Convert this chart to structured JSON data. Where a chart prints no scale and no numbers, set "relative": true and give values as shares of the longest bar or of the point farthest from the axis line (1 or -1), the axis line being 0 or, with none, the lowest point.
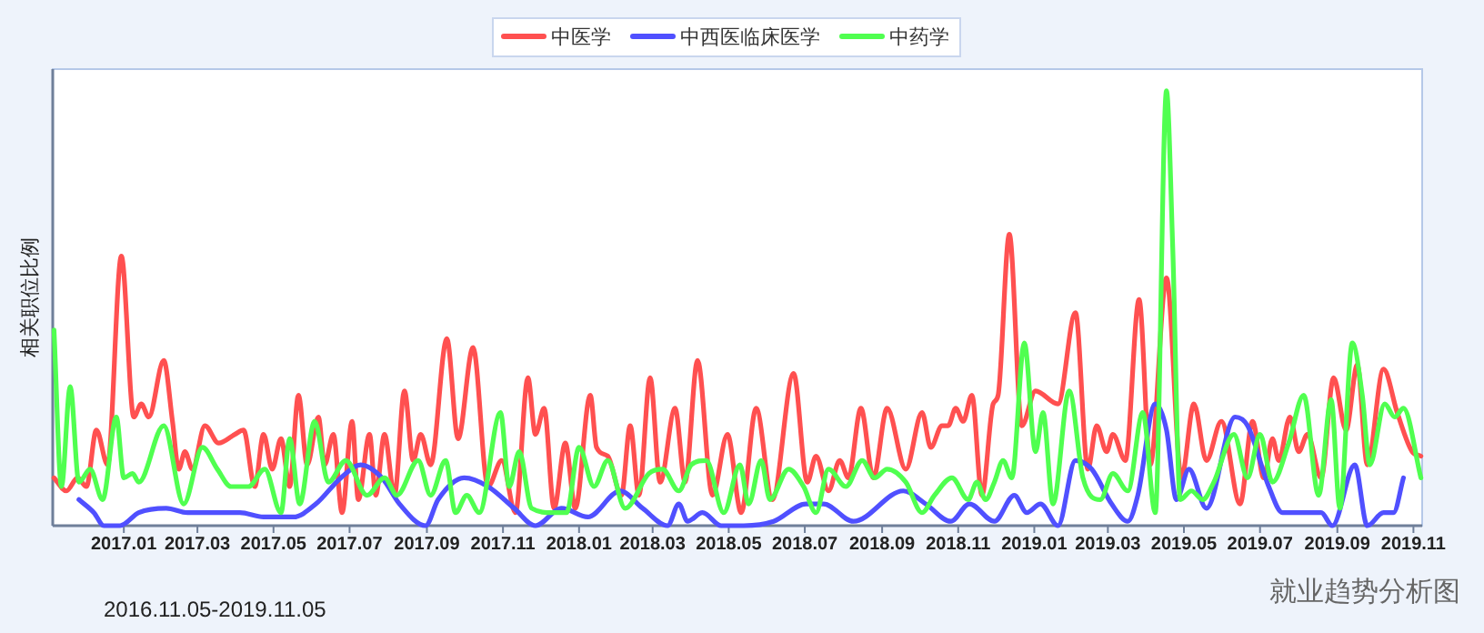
{
  "chart_data": {
    "type": "line",
    "relative": true,
    "ylabel": "相关职位比例",
    "legend": "top",
    "xlim": [
      "2016-11-05",
      "2019-11-08"
    ],
    "xticks": [
      {
        "value": "2017-01",
        "label": "2017.01"
      },
      {
        "value": "2017-03",
        "label": "2017.03"
      },
      {
        "value": "2017-05",
        "label": "2017.05"
      },
      {
        "value": "2017-07",
        "label": "2017.07"
      },
      {
        "value": "2017-09",
        "label": "2017.09"
      },
      {
        "value": "2017-11",
        "label": "2017.11"
      },
      {
        "value": "2018-01",
        "label": "2018.01"
      },
      {
        "value": "2018-03",
        "label": "2018.03"
      },
      {
        "value": "2018-05",
        "label": "2018.05"
      },
      {
        "value": "2018-07",
        "label": "2018.07"
      },
      {
        "value": "2018-09",
        "label": "2018.09"
      },
      {
        "value": "2018-11",
        "label": "2018.11"
      },
      {
        "value": "2019-01",
        "label": "2019.01"
      },
      {
        "value": "2019-03",
        "label": "2019.03"
      },
      {
        "value": "2019-05",
        "label": "2019.05"
      },
      {
        "value": "2019-07",
        "label": "2019.07"
      },
      {
        "value": "2019-09",
        "label": "2019.09"
      },
      {
        "value": "2019-11",
        "label": "2019.11"
      }
    ],
    "annotations": [
      "2016.11.05-2019.11.05",
      "就业趋势分析图"
    ],
    "series": [
      {
        "name": "中医学",
        "color": "#ff5050",
        "x": [
          "2016-11-06",
          "2016-11-16",
          "2016-11-25",
          "2016-12-02",
          "2016-12-10",
          "2016-12-19",
          "2016-12-30",
          "2017-01-09",
          "2017-01-15",
          "2017-01-21",
          "2017-02-02",
          "2017-02-09",
          "2017-02-14",
          "2017-02-19",
          "2017-02-25",
          "2017-03-07",
          "2017-03-18",
          "2017-03-31",
          "2017-04-07",
          "2017-04-16",
          "2017-04-23",
          "2017-04-30",
          "2017-05-07",
          "2017-05-14",
          "2017-05-21",
          "2017-05-28",
          "2017-06-06",
          "2017-06-11",
          "2017-06-18",
          "2017-06-25",
          "2017-07-03",
          "2017-07-08",
          "2017-07-17",
          "2017-07-22",
          "2017-07-29",
          "2017-08-06",
          "2017-08-14",
          "2017-08-21",
          "2017-08-27",
          "2017-09-04",
          "2017-09-17",
          "2017-09-26",
          "2017-10-08",
          "2017-10-20",
          "2017-10-31",
          "2017-11-11",
          "2017-11-21",
          "2017-11-27",
          "2017-12-04",
          "2017-12-12",
          "2017-12-21",
          "2017-12-29",
          "2018-01-10",
          "2018-01-15",
          "2018-01-24",
          "2018-02-04",
          "2018-02-11",
          "2018-02-18",
          "2018-02-27",
          "2018-03-07",
          "2018-03-19",
          "2018-03-27",
          "2018-04-06",
          "2018-04-18",
          "2018-04-30",
          "2018-05-11",
          "2018-05-23",
          "2018-06-05",
          "2018-06-22",
          "2018-07-03",
          "2018-07-10",
          "2018-07-20",
          "2018-07-29",
          "2018-08-05",
          "2018-08-15",
          "2018-08-25",
          "2018-09-05",
          "2018-09-20",
          "2018-10-03",
          "2018-10-10",
          "2018-10-19",
          "2018-10-24",
          "2018-10-30",
          "2018-11-05",
          "2018-11-12",
          "2018-11-20",
          "2018-11-29",
          "2018-12-03",
          "2018-12-12",
          "2018-12-22",
          "2019-01-02",
          "2019-01-20",
          "2019-02-03",
          "2019-02-13",
          "2019-02-20",
          "2019-02-28",
          "2019-03-05",
          "2019-03-15",
          "2019-03-26",
          "2019-04-04",
          "2019-04-17",
          "2019-04-29",
          "2019-05-09",
          "2019-05-19",
          "2019-05-31",
          "2019-06-15",
          "2019-06-25",
          "2019-07-04",
          "2019-07-11",
          "2019-07-16",
          "2019-07-25",
          "2019-08-01",
          "2019-08-08",
          "2019-08-19",
          "2019-08-29",
          "2019-09-08",
          "2019-09-17",
          "2019-09-25",
          "2019-10-08",
          "2019-10-19",
          "2019-10-31",
          "2019-11-07"
        ],
        "values": [
          0.11,
          0.08,
          0.11,
          0.09,
          0.22,
          0.14,
          0.62,
          0.25,
          0.28,
          0.25,
          0.38,
          0.24,
          0.13,
          0.17,
          0.13,
          0.23,
          0.19,
          0.21,
          0.22,
          0.09,
          0.21,
          0.13,
          0.2,
          0.09,
          0.3,
          0.14,
          0.25,
          0.14,
          0.21,
          0.03,
          0.24,
          0.06,
          0.21,
          0.07,
          0.21,
          0.07,
          0.31,
          0.15,
          0.21,
          0.14,
          0.43,
          0.2,
          0.41,
          0.09,
          0.15,
          0.03,
          0.34,
          0.21,
          0.27,
          0.04,
          0.19,
          0.04,
          0.3,
          0.18,
          0.16,
          0.07,
          0.23,
          0.07,
          0.34,
          0.1,
          0.27,
          0.1,
          0.38,
          0.07,
          0.21,
          0.03,
          0.27,
          0.06,
          0.35,
          0.1,
          0.16,
          0.08,
          0.15,
          0.11,
          0.27,
          0.11,
          0.27,
          0.13,
          0.26,
          0.18,
          0.23,
          0.23,
          0.27,
          0.24,
          0.3,
          0.07,
          0.28,
          0.3,
          0.67,
          0.23,
          0.31,
          0.28,
          0.49,
          0.13,
          0.23,
          0.17,
          0.21,
          0.15,
          0.52,
          0.14,
          0.57,
          0.11,
          0.28,
          0.15,
          0.24,
          0.05,
          0.24,
          0.11,
          0.2,
          0.15,
          0.25,
          0.17,
          0.21,
          0.11,
          0.34,
          0.22,
          0.37,
          0.14,
          0.36,
          0.26,
          0.17,
          0.16
        ]
      },
      {
        "name": "中西医临床医学",
        "color": "#5050ff",
        "x": [
          "2016-11-26",
          "2016-12-08",
          "2016-12-16",
          "2016-12-29",
          "2017-01-13",
          "2017-02-04",
          "2017-02-21",
          "2017-03-21",
          "2017-04-04",
          "2017-04-23",
          "2017-05-17",
          "2017-06-04",
          "2017-06-24",
          "2017-07-10",
          "2017-07-27",
          "2017-08-10",
          "2017-08-31",
          "2017-09-10",
          "2017-10-01",
          "2017-10-20",
          "2017-11-10",
          "2017-11-27",
          "2017-12-18",
          "2018-01-08",
          "2018-02-03",
          "2018-02-21",
          "2018-03-13",
          "2018-03-22",
          "2018-03-29",
          "2018-04-10",
          "2018-04-25",
          "2018-05-13",
          "2018-06-06",
          "2018-07-02",
          "2018-07-16",
          "2018-08-09",
          "2018-09-18",
          "2018-10-06",
          "2018-10-26",
          "2018-11-10",
          "2018-11-30",
          "2018-12-16",
          "2018-12-26",
          "2019-01-06",
          "2019-01-20",
          "2019-02-03",
          "2019-02-16",
          "2019-03-04",
          "2019-03-17",
          "2019-03-25",
          "2019-04-08",
          "2019-04-17",
          "2019-04-25",
          "2019-05-05",
          "2019-05-19",
          "2019-06-11",
          "2019-06-21",
          "2019-07-08",
          "2019-07-19",
          "2019-08-05",
          "2019-08-19",
          "2019-08-28",
          "2019-09-15",
          "2019-09-25",
          "2019-10-08",
          "2019-10-16",
          "2019-10-24"
        ],
        "values": [
          0.06,
          0.03,
          0,
          0,
          0.03,
          0.04,
          0.03,
          0.03,
          0.03,
          0.02,
          0.02,
          0.05,
          0.11,
          0.14,
          0.11,
          0.05,
          0,
          0.06,
          0.11,
          0.09,
          0.04,
          0,
          0.04,
          0.02,
          0.08,
          0.04,
          0,
          0.05,
          0.01,
          0.03,
          0,
          0,
          0.01,
          0.05,
          0.05,
          0.01,
          0.08,
          0.05,
          0.01,
          0.05,
          0.01,
          0.07,
          0.03,
          0.05,
          0,
          0.15,
          0.13,
          0.05,
          0.01,
          0.07,
          0.28,
          0.22,
          0.06,
          0.13,
          0.04,
          0.25,
          0.23,
          0.09,
          0.03,
          0.03,
          0.03,
          0,
          0.14,
          0,
          0.03,
          0.03,
          0.11
        ]
      },
      {
        "name": "中药学",
        "color": "#50ff50",
        "x": [
          "2016-11-06",
          "2016-11-12",
          "2016-11-19",
          "2016-11-26",
          "2016-12-05",
          "2016-12-15",
          "2016-12-26",
          "2017-01-01",
          "2017-01-08",
          "2017-01-13",
          "2017-02-02",
          "2017-02-18",
          "2017-03-05",
          "2017-03-17",
          "2017-03-28",
          "2017-04-11",
          "2017-04-24",
          "2017-05-07",
          "2017-05-14",
          "2017-05-22",
          "2017-06-03",
          "2017-06-14",
          "2017-06-28",
          "2017-07-15",
          "2017-07-29",
          "2017-08-08",
          "2017-08-25",
          "2017-09-04",
          "2017-09-16",
          "2017-09-24",
          "2017-10-03",
          "2017-10-13",
          "2017-10-30",
          "2017-11-06",
          "2017-11-14",
          "2017-11-24",
          "2017-12-11",
          "2017-12-22",
          "2018-01-01",
          "2018-01-13",
          "2018-01-24",
          "2018-02-07",
          "2018-02-26",
          "2018-03-09",
          "2018-03-22",
          "2018-04-01",
          "2018-04-13",
          "2018-04-27",
          "2018-05-10",
          "2018-05-17",
          "2018-05-27",
          "2018-06-03",
          "2018-06-18",
          "2018-06-30",
          "2018-07-10",
          "2018-07-20",
          "2018-08-03",
          "2018-08-16",
          "2018-08-26",
          "2018-09-05",
          "2018-09-20",
          "2018-10-03",
          "2018-10-13",
          "2018-10-27",
          "2018-11-09",
          "2018-11-16",
          "2018-11-23",
          "2018-11-30",
          "2018-12-07",
          "2018-12-14",
          "2018-12-24",
          "2019-01-02",
          "2019-01-08",
          "2019-01-16",
          "2019-01-29",
          "2019-02-09",
          "2019-02-23",
          "2019-03-05",
          "2019-03-17",
          "2019-03-29",
          "2019-04-08",
          "2019-04-17",
          "2019-04-22",
          "2019-04-28",
          "2019-05-07",
          "2019-05-16",
          "2019-05-25",
          "2019-06-10",
          "2019-06-21",
          "2019-07-01",
          "2019-07-11",
          "2019-07-24",
          "2019-08-05",
          "2019-08-17",
          "2019-08-27",
          "2019-09-03",
          "2019-09-13",
          "2019-09-21",
          "2019-09-27",
          "2019-10-09",
          "2019-10-17",
          "2019-10-24",
          "2019-11-07"
        ],
        "values": [
          0.45,
          0.09,
          0.32,
          0.1,
          0.13,
          0.06,
          0.25,
          0.11,
          0.12,
          0.1,
          0.23,
          0.05,
          0.18,
          0.13,
          0.09,
          0.09,
          0.13,
          0.03,
          0.2,
          0.05,
          0.24,
          0.1,
          0.15,
          0.07,
          0.11,
          0.07,
          0.15,
          0.07,
          0.15,
          0.03,
          0.07,
          0.03,
          0.26,
          0.09,
          0.17,
          0.04,
          0.03,
          0.03,
          0.18,
          0.09,
          0.15,
          0.04,
          0.12,
          0.13,
          0.08,
          0.14,
          0.15,
          0.03,
          0.14,
          0.05,
          0.15,
          0.06,
          0.13,
          0.09,
          0.03,
          0.13,
          0.09,
          0.15,
          0.11,
          0.13,
          0.1,
          0.03,
          0.07,
          0.11,
          0.06,
          0.1,
          0.06,
          0.1,
          0.15,
          0.11,
          0.42,
          0.17,
          0.26,
          0.05,
          0.31,
          0.11,
          0.06,
          0.12,
          0.08,
          0.26,
          0.03,
          1.0,
          0.64,
          0.06,
          0.08,
          0.06,
          0.1,
          0.21,
          0.11,
          0.21,
          0.1,
          0.19,
          0.3,
          0.07,
          0.29,
          0.04,
          0.42,
          0.3,
          0.14,
          0.28,
          0.25,
          0.27,
          0.11
        ]
      }
    ]
  }
}
